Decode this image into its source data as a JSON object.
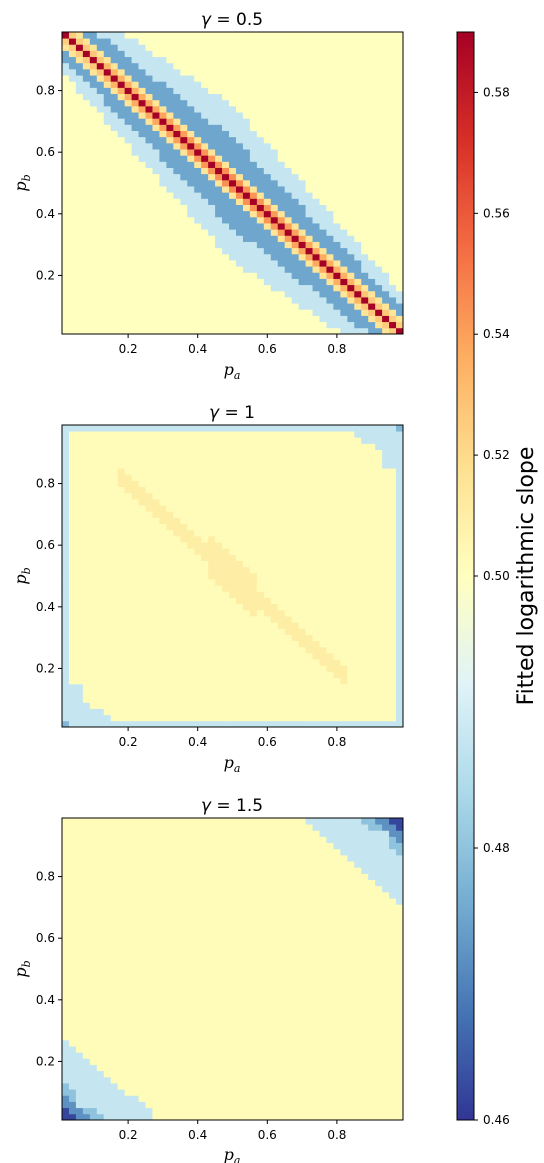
{
  "chart_data": [
    {
      "type": "heatmap",
      "gamma_label": "γ = 0.5",
      "title_symbol": "γ",
      "title_value": "0.5",
      "xlabel_var": "p",
      "xlabel_sub": "a",
      "ylabel_var": "p",
      "ylabel_sub": "b",
      "xlim": [
        0.01,
        0.99
      ],
      "ylim": [
        0.01,
        0.99
      ],
      "xticks": [
        "0.2",
        "0.4",
        "0.6",
        "0.8"
      ],
      "yticks": [
        "0.2",
        "0.4",
        "0.6",
        "0.8"
      ],
      "grid_size": 49,
      "background_value": 0.5,
      "pattern": "anti-diagonal band: slope peaks ≈0.59 on p_a + p_b = 1, ≈0.485 at band edges"
    },
    {
      "type": "heatmap",
      "title_symbol": "γ",
      "title_value": "1",
      "xlabel_var": "p",
      "xlabel_sub": "a",
      "ylabel_var": "p",
      "ylabel_sub": "b",
      "xlim": [
        0.01,
        0.99
      ],
      "ylim": [
        0.01,
        0.99
      ],
      "xticks": [
        "0.2",
        "0.4",
        "0.6",
        "0.8"
      ],
      "yticks": [
        "0.2",
        "0.4",
        "0.6",
        "0.8"
      ],
      "grid_size": 49,
      "background_value": 0.502,
      "pattern": "nearly uniform ≈0.50; faint anti-diagonal ≈0.51; border ≈0.488; corners ≈0.478"
    },
    {
      "type": "heatmap",
      "title_symbol": "γ",
      "title_value": "1.5",
      "xlabel_var": "p",
      "xlabel_sub": "a",
      "ylabel_var": "p",
      "ylabel_sub": "b",
      "xlim": [
        0.01,
        0.99
      ],
      "ylim": [
        0.01,
        0.99
      ],
      "xticks": [
        "0.2",
        "0.4",
        "0.6",
        "0.8"
      ],
      "yticks": [
        "0.2",
        "0.4",
        "0.6",
        "0.8"
      ],
      "grid_size": 49,
      "background_value": 0.502,
      "pattern": "≈0.50 everywhere; lower-left and upper-right corner regions ≈0.488 darkening to ≈0.462 at extreme corners"
    }
  ],
  "colorbar": {
    "label": "Fitted logarithmic slope",
    "colormap": "RdYlBu_r",
    "vmin": 0.46,
    "vcenter": 0.5,
    "vmax": 0.59,
    "ticks": [
      "0.46",
      "0.48",
      "0.50",
      "0.52",
      "0.54",
      "0.56",
      "0.58"
    ],
    "tick_values": [
      0.46,
      0.48,
      0.5,
      0.52,
      0.54,
      0.56,
      0.58
    ]
  }
}
